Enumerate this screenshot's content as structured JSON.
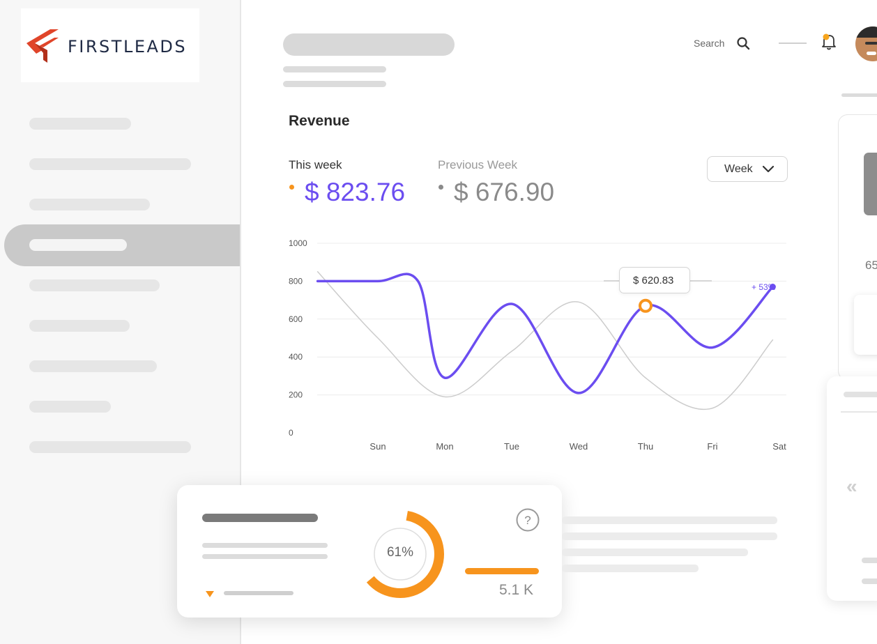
{
  "brand": {
    "logo_text": "FIRSTLEADS",
    "accent": "#e0452a",
    "accent_dark": "#b2301b"
  },
  "header": {
    "search_label": "Search"
  },
  "revenue": {
    "title": "Revenue",
    "this_week_label": "This week",
    "this_week_value": "$ 823.76",
    "prev_week_label": "Previous Week",
    "prev_week_value": "$ 676.90",
    "period_select": "Week",
    "tooltip_value": "$ 620.83",
    "change_label": "+ 53%"
  },
  "chart_data": {
    "type": "line",
    "categories": [
      "Sun",
      "Mon",
      "Tue",
      "Wed",
      "Thu",
      "Fri",
      "Sat"
    ],
    "y_ticks": [
      "1000",
      "800",
      "600",
      "400",
      "200",
      "0"
    ],
    "ylim": [
      0,
      1000
    ],
    "grid": true,
    "series": [
      {
        "color": "#6b4df0",
        "x": [
          -0.9,
          0,
          0.6,
          1,
          2,
          3,
          4,
          5,
          5.9
        ],
        "values": [
          800,
          800,
          800,
          290,
          680,
          210,
          670,
          450,
          770
        ]
      },
      {
        "color": "#cccccc",
        "x": [
          -0.9,
          0,
          1,
          2,
          3,
          4,
          5,
          5.9
        ],
        "values": [
          850,
          500,
          190,
          430,
          690,
          290,
          130,
          490
        ]
      }
    ],
    "highlight": {
      "category": "Thu",
      "value": 670,
      "color": "#f7941d"
    }
  },
  "stats_card": {
    "donut_percent": 61,
    "donut_label": "61%",
    "metric_value": "5.1 K",
    "help_icon": "question-circle-icon",
    "accent": "#f7941d"
  },
  "right_panel": {
    "partial_value": "65"
  }
}
